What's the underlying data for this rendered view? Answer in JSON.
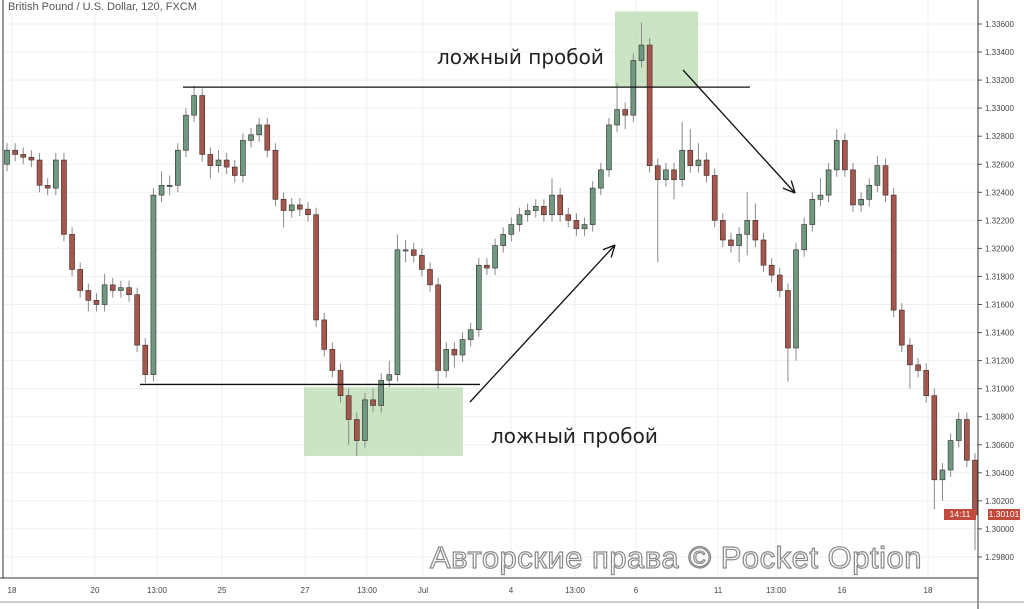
{
  "title": "British Pound / U.S. Dollar, 120, FXCM",
  "chart_data": {
    "type": "candlestick",
    "title": "British Pound / U.S. Dollar, 120, FXCM",
    "ylim": [
      1.2975,
      1.3375
    ],
    "y_ticks": [
      "1.33600",
      "1.33400",
      "1.33200",
      "1.33000",
      "1.32800",
      "1.32600",
      "1.32400",
      "1.32200",
      "1.32000",
      "1.31800",
      "1.31600",
      "1.31400",
      "1.31200",
      "1.31000",
      "1.30800",
      "1.30600",
      "1.30400",
      "1.30200",
      "1.30000",
      "1.29800"
    ],
    "x_ticks": [
      "18",
      "20",
      "13:00",
      "25",
      "27",
      "13:00",
      "Jul",
      "4",
      "13:00",
      "6",
      "11",
      "13:00",
      "16",
      "18"
    ],
    "grid": true,
    "colors": {
      "up": "#6d9a80",
      "down": "#a5574d",
      "outline": "#3a2a28",
      "zone": "#b9dcb0"
    },
    "ohlc": [
      [
        1.326,
        1.3275,
        1.3255,
        1.327
      ],
      [
        1.327,
        1.3275,
        1.3262,
        1.3267
      ],
      [
        1.3267,
        1.3272,
        1.326,
        1.3265
      ],
      [
        1.3265,
        1.327,
        1.3258,
        1.3263
      ],
      [
        1.3263,
        1.3268,
        1.324,
        1.3245
      ],
      [
        1.3245,
        1.325,
        1.3238,
        1.3243
      ],
      [
        1.3243,
        1.3268,
        1.3238,
        1.3263
      ],
      [
        1.3263,
        1.3268,
        1.3205,
        1.321
      ],
      [
        1.321,
        1.3215,
        1.318,
        1.3185
      ],
      [
        1.3185,
        1.319,
        1.3165,
        1.317
      ],
      [
        1.317,
        1.3175,
        1.3155,
        1.3163
      ],
      [
        1.3163,
        1.3168,
        1.3155,
        1.316
      ],
      [
        1.316,
        1.3182,
        1.3155,
        1.3174
      ],
      [
        1.3174,
        1.3179,
        1.3165,
        1.317
      ],
      [
        1.317,
        1.3177,
        1.3165,
        1.3172
      ],
      [
        1.3172,
        1.3177,
        1.3162,
        1.3167
      ],
      [
        1.3167,
        1.3172,
        1.3126,
        1.3131
      ],
      [
        1.3131,
        1.3136,
        1.3104,
        1.311
      ],
      [
        1.311,
        1.3243,
        1.3105,
        1.3238
      ],
      [
        1.3238,
        1.3255,
        1.3233,
        1.3245
      ],
      [
        1.3245,
        1.3252,
        1.3238,
        1.3245
      ],
      [
        1.3245,
        1.3275,
        1.324,
        1.327
      ],
      [
        1.327,
        1.33,
        1.3265,
        1.3295
      ],
      [
        1.3295,
        1.3316,
        1.329,
        1.3309
      ],
      [
        1.3309,
        1.3314,
        1.3262,
        1.3267
      ],
      [
        1.3267,
        1.3272,
        1.325,
        1.3259
      ],
      [
        1.3259,
        1.327,
        1.3254,
        1.3263
      ],
      [
        1.3263,
        1.3268,
        1.3253,
        1.3258
      ],
      [
        1.3258,
        1.3263,
        1.3247,
        1.3252
      ],
      [
        1.3252,
        1.3282,
        1.3247,
        1.3277
      ],
      [
        1.3277,
        1.3286,
        1.3272,
        1.3281
      ],
      [
        1.3281,
        1.3293,
        1.3276,
        1.3288
      ],
      [
        1.3288,
        1.3293,
        1.3265,
        1.327
      ],
      [
        1.327,
        1.3275,
        1.323,
        1.3235
      ],
      [
        1.3235,
        1.324,
        1.3215,
        1.3227
      ],
      [
        1.3227,
        1.3236,
        1.3222,
        1.3231
      ],
      [
        1.3231,
        1.3236,
        1.3223,
        1.3228
      ],
      [
        1.3228,
        1.3233,
        1.3219,
        1.3224
      ],
      [
        1.3224,
        1.3229,
        1.3144,
        1.3149
      ],
      [
        1.3149,
        1.3154,
        1.3123,
        1.3128
      ],
      [
        1.3128,
        1.3133,
        1.3108,
        1.3113
      ],
      [
        1.3113,
        1.3118,
        1.309,
        1.3095
      ],
      [
        1.3095,
        1.31,
        1.306,
        1.3078
      ],
      [
        1.3078,
        1.3083,
        1.3052,
        1.3063
      ],
      [
        1.3063,
        1.3097,
        1.3058,
        1.3092
      ],
      [
        1.3092,
        1.31,
        1.3083,
        1.3088
      ],
      [
        1.3088,
        1.3111,
        1.3083,
        1.3106
      ],
      [
        1.3106,
        1.312,
        1.3101,
        1.311
      ],
      [
        1.311,
        1.321,
        1.3105,
        1.3199
      ],
      [
        1.3199,
        1.3206,
        1.319,
        1.3199
      ],
      [
        1.3199,
        1.3204,
        1.319,
        1.3195
      ],
      [
        1.3195,
        1.32,
        1.318,
        1.3185
      ],
      [
        1.3185,
        1.319,
        1.3169,
        1.3174
      ],
      [
        1.3174,
        1.3179,
        1.31,
        1.3113
      ],
      [
        1.3113,
        1.3133,
        1.3108,
        1.3128
      ],
      [
        1.3128,
        1.3133,
        1.3115,
        1.3124
      ],
      [
        1.3124,
        1.314,
        1.3119,
        1.3135
      ],
      [
        1.3135,
        1.3147,
        1.313,
        1.3142
      ],
      [
        1.3142,
        1.3193,
        1.3137,
        1.3188
      ],
      [
        1.3188,
        1.3193,
        1.3181,
        1.3186
      ],
      [
        1.3186,
        1.3207,
        1.3181,
        1.3202
      ],
      [
        1.3202,
        1.3215,
        1.3197,
        1.321
      ],
      [
        1.321,
        1.3222,
        1.3205,
        1.3217
      ],
      [
        1.3217,
        1.3229,
        1.3212,
        1.3224
      ],
      [
        1.3224,
        1.3232,
        1.3219,
        1.3227
      ],
      [
        1.3227,
        1.3235,
        1.3222,
        1.323
      ],
      [
        1.323,
        1.3235,
        1.3219,
        1.3224
      ],
      [
        1.3224,
        1.325,
        1.3219,
        1.3238
      ],
      [
        1.3238,
        1.3243,
        1.3219,
        1.3224
      ],
      [
        1.3224,
        1.3229,
        1.3215,
        1.322
      ],
      [
        1.322,
        1.3225,
        1.3209,
        1.3214
      ],
      [
        1.3214,
        1.3222,
        1.3209,
        1.3217
      ],
      [
        1.3217,
        1.3248,
        1.3212,
        1.3243
      ],
      [
        1.3243,
        1.3261,
        1.3238,
        1.3256
      ],
      [
        1.3256,
        1.3293,
        1.3251,
        1.3288
      ],
      [
        1.3288,
        1.3318,
        1.3283,
        1.3299
      ],
      [
        1.3299,
        1.3304,
        1.3285,
        1.3295
      ],
      [
        1.3295,
        1.3339,
        1.329,
        1.3334
      ],
      [
        1.3334,
        1.3361,
        1.3329,
        1.3345
      ],
      [
        1.3345,
        1.335,
        1.3254,
        1.3259
      ],
      [
        1.3259,
        1.3264,
        1.319,
        1.3249
      ],
      [
        1.3249,
        1.3261,
        1.3244,
        1.3256
      ],
      [
        1.3256,
        1.3261,
        1.3235,
        1.3249
      ],
      [
        1.3249,
        1.329,
        1.3244,
        1.327
      ],
      [
        1.327,
        1.3285,
        1.3254,
        1.3259
      ],
      [
        1.3259,
        1.3275,
        1.3254,
        1.3263
      ],
      [
        1.3263,
        1.3268,
        1.3247,
        1.3252
      ],
      [
        1.3252,
        1.3257,
        1.3215,
        1.322
      ],
      [
        1.322,
        1.3225,
        1.3201,
        1.3206
      ],
      [
        1.3206,
        1.3211,
        1.3197,
        1.3202
      ],
      [
        1.3202,
        1.3215,
        1.319,
        1.321
      ],
      [
        1.321,
        1.324,
        1.3195,
        1.322
      ],
      [
        1.322,
        1.3232,
        1.3201,
        1.3206
      ],
      [
        1.3206,
        1.3211,
        1.3183,
        1.3188
      ],
      [
        1.3188,
        1.3193,
        1.3176,
        1.3181
      ],
      [
        1.3181,
        1.3186,
        1.3165,
        1.317
      ],
      [
        1.317,
        1.3175,
        1.3105,
        1.3129
      ],
      [
        1.3129,
        1.3204,
        1.312,
        1.3199
      ],
      [
        1.3199,
        1.3222,
        1.3194,
        1.3217
      ],
      [
        1.3217,
        1.324,
        1.3212,
        1.3235
      ],
      [
        1.3235,
        1.325,
        1.323,
        1.3238
      ],
      [
        1.3238,
        1.3261,
        1.3233,
        1.3256
      ],
      [
        1.3256,
        1.3285,
        1.3251,
        1.3277
      ],
      [
        1.3277,
        1.3282,
        1.3251,
        1.3256
      ],
      [
        1.3256,
        1.3261,
        1.3226,
        1.3231
      ],
      [
        1.3231,
        1.324,
        1.3226,
        1.3235
      ],
      [
        1.3235,
        1.325,
        1.323,
        1.3245
      ],
      [
        1.3245,
        1.3266,
        1.324,
        1.3259
      ],
      [
        1.3259,
        1.3264,
        1.3233,
        1.3238
      ],
      [
        1.3238,
        1.3243,
        1.3151,
        1.3156
      ],
      [
        1.3156,
        1.3161,
        1.3126,
        1.3131
      ],
      [
        1.3131,
        1.3136,
        1.31,
        1.3117
      ],
      [
        1.3117,
        1.3122,
        1.3108,
        1.3113
      ],
      [
        1.3113,
        1.3118,
        1.309,
        1.3095
      ],
      [
        1.3095,
        1.31,
        1.3014,
        1.3035
      ],
      [
        1.3035,
        1.3047,
        1.302,
        1.3042
      ],
      [
        1.3042,
        1.3068,
        1.3037,
        1.3063
      ],
      [
        1.3063,
        1.3083,
        1.3058,
        1.3078
      ],
      [
        1.3078,
        1.3083,
        1.3044,
        1.3049
      ],
      [
        1.3049,
        1.3054,
        1.2985,
        1.301
      ]
    ],
    "levels": {
      "resistance": 1.3315,
      "support": 1.3103
    },
    "zones": [
      {
        "name": "top",
        "price_high": 1.3369,
        "price_low": 1.3315
      },
      {
        "name": "bottom",
        "price_high": 1.3101,
        "price_low": 1.3052
      }
    ],
    "annotations": {
      "top": "ложный пробой",
      "bottom": "ложный пробой"
    },
    "last_price": "1.30101",
    "countdown": "14:11"
  },
  "watermark": "Авторские права © Pocket Option"
}
